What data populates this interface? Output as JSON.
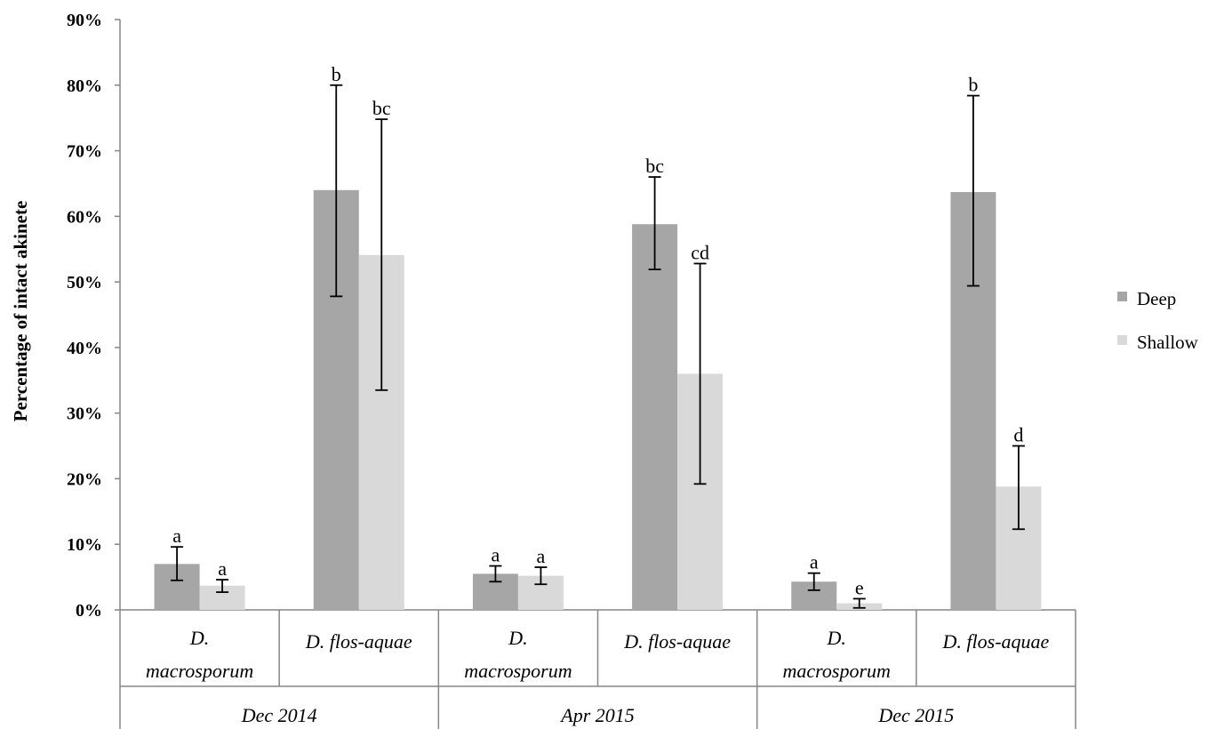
{
  "chart_data": {
    "type": "bar",
    "ylabel": "Percentage of intact akinete",
    "ylim": [
      0,
      90
    ],
    "yticks": [
      "0%",
      "10%",
      "20%",
      "30%",
      "40%",
      "50%",
      "60%",
      "70%",
      "80%",
      "90%"
    ],
    "categories": [
      {
        "line1": "D.",
        "line2": "macrosporum",
        "group": "Dec 2014"
      },
      {
        "line1": "D. flos-aquae",
        "line2": "",
        "group": "Dec 2014"
      },
      {
        "line1": "D.",
        "line2": "macrosporum",
        "group": "Apr 2015"
      },
      {
        "line1": "D. flos-aquae",
        "line2": "",
        "group": "Apr 2015"
      },
      {
        "line1": "D.",
        "line2": "macrosporum",
        "group": "Dec 2015"
      },
      {
        "line1": "D. flos-aquae",
        "line2": "",
        "group": "Dec 2015"
      }
    ],
    "groups": [
      "Dec 2014",
      "Apr 2015",
      "Dec 2015"
    ],
    "series": [
      {
        "name": "Deep",
        "color": "#a6a6a6",
        "values": [
          7.0,
          64.0,
          5.5,
          58.8,
          4.3,
          63.7
        ],
        "err_low": [
          4.5,
          47.8,
          4.3,
          51.9,
          3.0,
          49.4
        ],
        "err_high": [
          9.6,
          80.0,
          6.7,
          66.0,
          5.6,
          78.4
        ],
        "sig": [
          "a",
          "b",
          "a",
          "bc",
          "a",
          "b"
        ]
      },
      {
        "name": "Shallow",
        "color": "#d9d9d9",
        "values": [
          3.7,
          54.1,
          5.2,
          36.0,
          1.0,
          18.8
        ],
        "err_low": [
          2.7,
          33.5,
          3.9,
          19.2,
          0.3,
          12.3
        ],
        "err_high": [
          4.6,
          74.8,
          6.5,
          52.8,
          1.7,
          25.0
        ],
        "sig": [
          "a",
          "bc",
          "a",
          "cd",
          "e",
          "d"
        ]
      }
    ],
    "legend_position": "right",
    "grid": false
  }
}
